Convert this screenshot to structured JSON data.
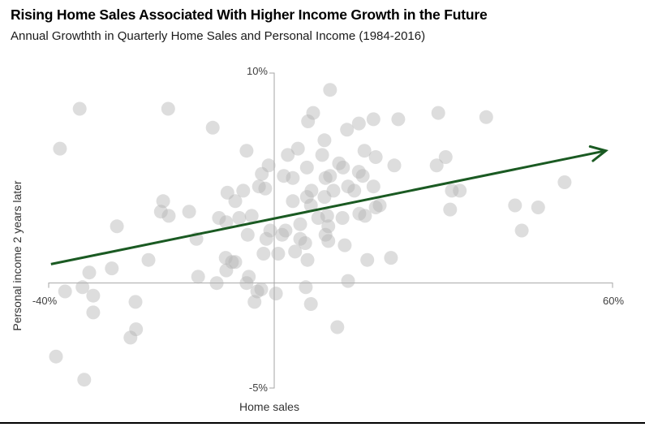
{
  "chart_data": {
    "type": "scatter",
    "title": "Rising Home Sales Associated With Higher Income Growth in the Future",
    "subtitle": "Annual Growthth in Quarterly Home Sales and Personal Income (1984-2016)",
    "xlabel": "Home sales",
    "ylabel": "Personal income 2 years later",
    "xlim": [
      -40,
      60
    ],
    "ylim": [
      -5,
      10
    ],
    "grid": false,
    "legend": null,
    "x_ticks": [
      {
        "value": -40,
        "label": "-40%"
      },
      {
        "value": 60,
        "label": "60%"
      }
    ],
    "y_ticks": [
      {
        "value": 10,
        "label": "10%"
      },
      {
        "value": -5,
        "label": "-5%"
      }
    ],
    "colors": {
      "dot": "#b3b3b3",
      "trend": "#1a5a22",
      "axis": "#a6a6a6",
      "title": "#000000"
    },
    "trend_line": {
      "x1": -39.6,
      "y1": 0.9,
      "x2": 58.8,
      "y2": 6.3,
      "style": "arrow"
    },
    "points": [
      [
        -34.5,
        8.3
      ],
      [
        -18.8,
        8.3
      ],
      [
        -10.9,
        7.4
      ],
      [
        -38.0,
        6.4
      ],
      [
        -4.9,
        6.3
      ],
      [
        -19.7,
        3.9
      ],
      [
        -20.1,
        3.4
      ],
      [
        -18.7,
        3.2
      ],
      [
        -15.1,
        3.4
      ],
      [
        -8.3,
        4.3
      ],
      [
        -6.9,
        3.9
      ],
      [
        -9.8,
        3.1
      ],
      [
        -8.5,
        2.9
      ],
      [
        -6.2,
        3.1
      ],
      [
        -27.9,
        2.7
      ],
      [
        -5.5,
        4.4
      ],
      [
        -4.0,
        3.2
      ],
      [
        -2.7,
        4.6
      ],
      [
        -1.6,
        4.5
      ],
      [
        -2.2,
        5.2
      ],
      [
        -1.0,
        5.6
      ],
      [
        -0.7,
        2.5
      ],
      [
        -13.8,
        2.1
      ],
      [
        -22.3,
        1.1
      ],
      [
        -8.6,
        1.2
      ],
      [
        -7.5,
        1.0
      ],
      [
        -8.5,
        0.6
      ],
      [
        -32.8,
        0.5
      ],
      [
        -28.8,
        0.7
      ],
      [
        -1.4,
        2.1
      ],
      [
        -4.7,
        2.3
      ],
      [
        -1.9,
        1.4
      ],
      [
        -6.9,
        1.0
      ],
      [
        -4.5,
        0.3
      ],
      [
        -4.9,
        0.0
      ],
      [
        -13.5,
        0.3
      ],
      [
        -10.2,
        0.0
      ],
      [
        9.9,
        9.2
      ],
      [
        6.9,
        8.1
      ],
      [
        6.0,
        7.7
      ],
      [
        17.6,
        7.8
      ],
      [
        15.0,
        7.6
      ],
      [
        22.0,
        7.8
      ],
      [
        12.9,
        7.3
      ],
      [
        8.9,
        6.8
      ],
      [
        4.2,
        6.4
      ],
      [
        2.4,
        6.1
      ],
      [
        8.5,
        6.1
      ],
      [
        16.0,
        6.3
      ],
      [
        18.0,
        6.0
      ],
      [
        21.3,
        5.6
      ],
      [
        5.8,
        5.5
      ],
      [
        1.7,
        5.1
      ],
      [
        3.3,
        5.0
      ],
      [
        11.5,
        5.7
      ],
      [
        12.2,
        5.5
      ],
      [
        15.0,
        5.3
      ],
      [
        15.7,
        5.1
      ],
      [
        9.1,
        5.0
      ],
      [
        9.9,
        5.1
      ],
      [
        6.6,
        4.4
      ],
      [
        5.8,
        4.1
      ],
      [
        10.5,
        4.4
      ],
      [
        13.1,
        4.6
      ],
      [
        14.2,
        4.4
      ],
      [
        17.6,
        4.6
      ],
      [
        3.3,
        3.9
      ],
      [
        6.5,
        3.7
      ],
      [
        8.9,
        4.1
      ],
      [
        18.7,
        3.7
      ],
      [
        18.0,
        3.6
      ],
      [
        7.8,
        3.1
      ],
      [
        9.4,
        3.2
      ],
      [
        12.1,
        3.1
      ],
      [
        15.1,
        3.3
      ],
      [
        16.1,
        3.2
      ],
      [
        2.0,
        2.5
      ],
      [
        4.6,
        2.8
      ],
      [
        9.6,
        2.7
      ],
      [
        29.1,
        8.1
      ],
      [
        37.6,
        7.9
      ],
      [
        30.4,
        6.0
      ],
      [
        28.8,
        5.6
      ],
      [
        31.5,
        4.4
      ],
      [
        32.9,
        4.4
      ],
      [
        31.2,
        3.5
      ],
      [
        42.7,
        3.7
      ],
      [
        46.8,
        3.6
      ],
      [
        51.5,
        4.8
      ],
      [
        43.9,
        2.5
      ],
      [
        1.4,
        2.3
      ],
      [
        4.6,
        2.1
      ],
      [
        5.5,
        1.9
      ],
      [
        9.1,
        2.3
      ],
      [
        9.6,
        2.0
      ],
      [
        12.5,
        1.8
      ],
      [
        0.7,
        1.4
      ],
      [
        3.7,
        1.5
      ],
      [
        5.9,
        1.1
      ],
      [
        16.5,
        1.1
      ],
      [
        20.7,
        1.2
      ],
      [
        13.1,
        0.1
      ],
      [
        -34.0,
        -0.2
      ],
      [
        -37.1,
        -0.4
      ],
      [
        -32.1,
        -0.6
      ],
      [
        -32.1,
        -1.4
      ],
      [
        -24.6,
        -0.9
      ],
      [
        -24.5,
        -2.2
      ],
      [
        -25.5,
        -2.6
      ],
      [
        -38.7,
        -3.5
      ],
      [
        -33.7,
        -4.6
      ],
      [
        -3.0,
        -0.4
      ],
      [
        -2.3,
        -0.3
      ],
      [
        0.3,
        -0.5
      ],
      [
        -3.5,
        -0.9
      ],
      [
        5.6,
        -0.2
      ],
      [
        6.5,
        -1.0
      ],
      [
        11.2,
        -2.1
      ]
    ]
  }
}
